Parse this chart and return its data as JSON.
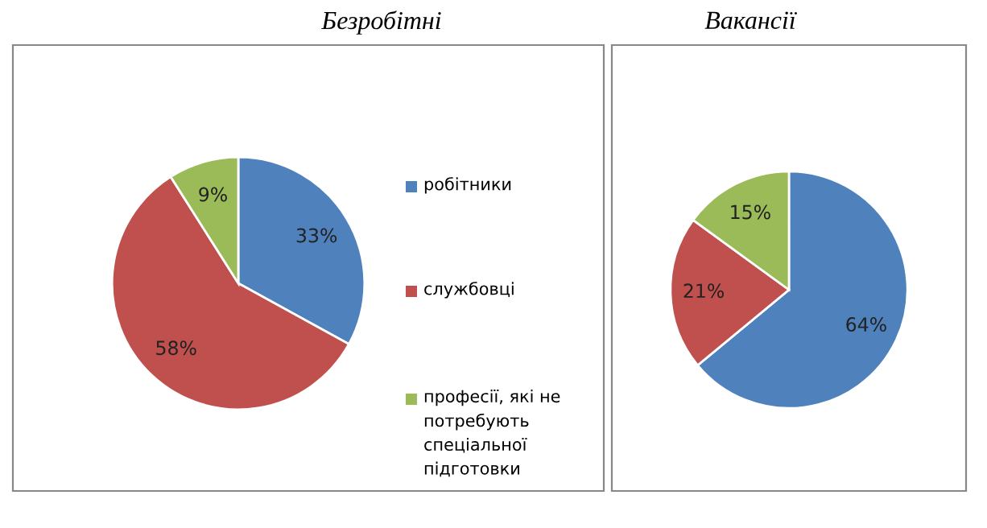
{
  "chart_data": [
    {
      "type": "pie",
      "title": "Безробітні",
      "categories": [
        "робітники",
        "службовці",
        "професії, які не потребують спеціальної підготовки"
      ],
      "values": [
        33,
        58,
        9
      ],
      "value_labels": [
        "33%",
        "58%",
        "9%"
      ],
      "colors": [
        "#4f81bd",
        "#c0504d",
        "#9bbb59"
      ],
      "legend": "right"
    },
    {
      "type": "pie",
      "title": "Вакансії",
      "categories": [
        null,
        null,
        null
      ],
      "values": [
        64,
        21,
        15
      ],
      "value_labels": [
        "64%",
        "21%",
        "15%"
      ],
      "colors": [
        "#4f81bd",
        "#c0504d",
        "#9bbb59"
      ]
    }
  ]
}
